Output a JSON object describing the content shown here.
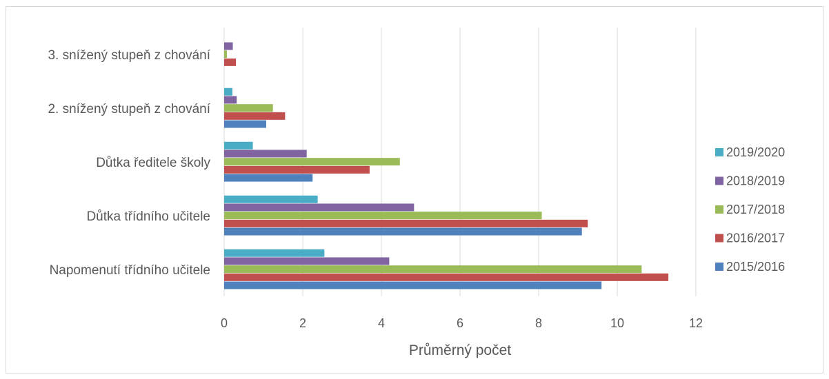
{
  "chart_data": {
    "type": "bar",
    "orientation": "horizontal",
    "categories": [
      "Napomenutí třídního učitele",
      "Důtka třídního učitele",
      "Důtka ředitele školy",
      "2. snížený stupeň z chování",
      "3. snížený stupeň z chování"
    ],
    "series": [
      {
        "name": "2015/2016",
        "color": "#4f81bd",
        "values": [
          9.6,
          9.1,
          2.25,
          1.07,
          0
        ]
      },
      {
        "name": "2016/2017",
        "color": "#c0504d",
        "values": [
          11.3,
          9.25,
          3.7,
          1.55,
          0.3
        ]
      },
      {
        "name": "2017/2018",
        "color": "#9bbb59",
        "values": [
          10.62,
          8.08,
          4.47,
          1.24,
          0.07
        ]
      },
      {
        "name": "2018/2019",
        "color": "#8064a2",
        "values": [
          4.2,
          4.83,
          2.1,
          0.32,
          0.22
        ]
      },
      {
        "name": "2019/2020",
        "color": "#4bacc6",
        "values": [
          2.55,
          2.38,
          0.73,
          0.21,
          0
        ]
      }
    ],
    "xlabel": "Průměrný počet",
    "xlim": [
      0,
      12
    ],
    "xticks": [
      "0",
      "2",
      "4",
      "6",
      "8",
      "10",
      "12"
    ],
    "grid": "vertical",
    "legend_position": "right",
    "legend_order": [
      "2019/2020",
      "2018/2019",
      "2017/2018",
      "2016/2017",
      "2015/2016"
    ]
  }
}
